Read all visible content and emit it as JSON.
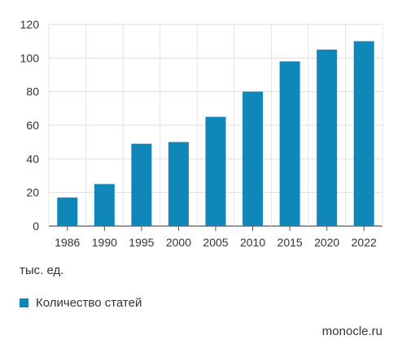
{
  "chart_data": {
    "type": "bar",
    "categories": [
      "1986",
      "1990",
      "1995",
      "2000",
      "2005",
      "2010",
      "2015",
      "2020",
      "2022"
    ],
    "series": [
      {
        "name": "Количество статей",
        "values": [
          17,
          25,
          49,
          50,
          65,
          80,
          98,
          105,
          110
        ]
      }
    ],
    "ylim": [
      0,
      120
    ],
    "yticks": [
      0,
      20,
      40,
      60,
      80,
      100,
      120
    ],
    "unit_label": "тыс. ед.",
    "grid": true,
    "legend_position": "bottom-left",
    "bar_color": "#0f87b8"
  },
  "source": "monocle.ru"
}
